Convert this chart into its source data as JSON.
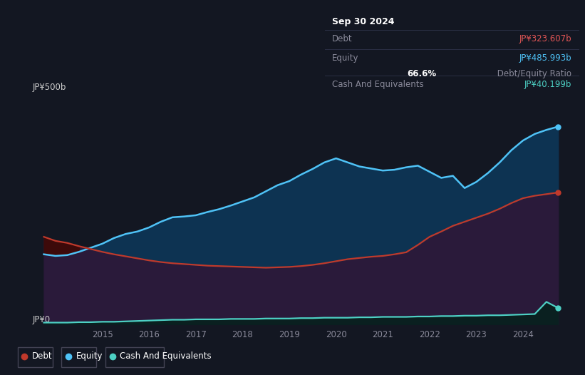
{
  "bg_color": "#131722",
  "plot_bg_color": "#131722",
  "grid_color": "#2a2f45",
  "y_label_top": "JP¥500b",
  "y_label_bottom": "JP¥0",
  "x_ticks": [
    "2015",
    "2016",
    "2017",
    "2018",
    "2019",
    "2020",
    "2021",
    "2022",
    "2023",
    "2024"
  ],
  "debt_color": "#c0392b",
  "equity_color": "#2196f3",
  "equity_line_color": "#4fc3f7",
  "cash_color": "#4dd0c4",
  "equity_fill": "#0d3352",
  "debt_fill": "#2a1a3a",
  "cash_fill": "#0a2020",
  "years": [
    2013.75,
    2014.0,
    2014.25,
    2014.5,
    2014.75,
    2015.0,
    2015.25,
    2015.5,
    2015.75,
    2016.0,
    2016.25,
    2016.5,
    2016.75,
    2017.0,
    2017.25,
    2017.5,
    2017.75,
    2018.0,
    2018.25,
    2018.5,
    2018.75,
    2019.0,
    2019.25,
    2019.5,
    2019.75,
    2020.0,
    2020.25,
    2020.5,
    2020.75,
    2021.0,
    2021.25,
    2021.5,
    2021.75,
    2022.0,
    2022.25,
    2022.5,
    2022.75,
    2023.0,
    2023.25,
    2023.5,
    2023.75,
    2024.0,
    2024.25,
    2024.5,
    2024.75
  ],
  "equity": [
    172,
    168,
    170,
    178,
    188,
    198,
    212,
    222,
    228,
    238,
    252,
    263,
    265,
    268,
    276,
    283,
    292,
    302,
    312,
    327,
    342,
    352,
    368,
    382,
    398,
    408,
    398,
    388,
    383,
    378,
    380,
    386,
    390,
    375,
    360,
    365,
    335,
    350,
    372,
    398,
    428,
    452,
    468,
    478,
    486
  ],
  "debt": [
    215,
    205,
    200,
    192,
    185,
    178,
    172,
    167,
    162,
    157,
    153,
    150,
    148,
    146,
    144,
    143,
    142,
    141,
    140,
    139,
    140,
    141,
    143,
    146,
    150,
    155,
    160,
    163,
    166,
    168,
    172,
    177,
    195,
    215,
    228,
    242,
    252,
    262,
    272,
    284,
    298,
    310,
    316,
    320,
    324
  ],
  "cash": [
    4,
    4,
    4,
    5,
    5,
    6,
    6,
    7,
    8,
    9,
    10,
    11,
    11,
    12,
    12,
    12,
    13,
    13,
    13,
    14,
    14,
    14,
    15,
    15,
    16,
    16,
    16,
    17,
    17,
    18,
    18,
    18,
    19,
    19,
    20,
    20,
    21,
    21,
    22,
    22,
    23,
    24,
    25,
    55,
    40
  ],
  "ylim_max": 530,
  "xlim_min": 2013.5,
  "xlim_max": 2025.2,
  "tooltip": {
    "date": "Sep 30 2024",
    "debt_label": "Debt",
    "debt_value": "JP¥323.607b",
    "equity_label": "Equity",
    "equity_value": "JP¥485.993b",
    "ratio_pct": "66.6%",
    "ratio_text": " Debt/Equity Ratio",
    "cash_label": "Cash And Equivalents",
    "cash_value": "JP¥40.199b"
  }
}
